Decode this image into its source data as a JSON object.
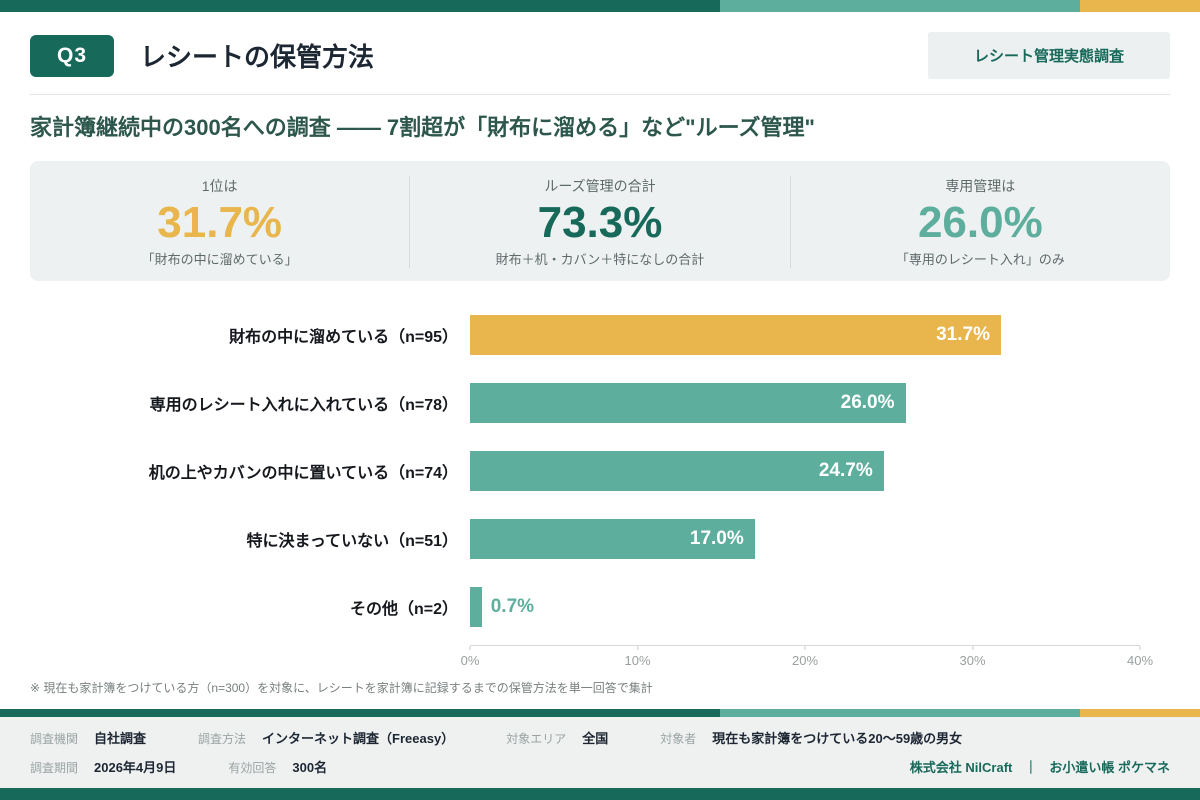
{
  "theme": {
    "dark_teal": "#17695a",
    "teal": "#5eae9e",
    "gold": "#e8b64d",
    "panel_gray": "#eef1f1"
  },
  "header": {
    "q_badge": "Q3",
    "title": "レシートの保管方法",
    "tag": "レシート管理実態調査"
  },
  "subtitle": "家計簿継続中の300名への調査 ―― 7割超が「財布に溜める」など\"ルーズ管理\"",
  "stats": [
    {
      "label": "1位は",
      "value": "31.7%",
      "caption": "「財布の中に溜めている」",
      "color": "#e8b64d"
    },
    {
      "label": "ルーズ管理の合計",
      "value": "73.3%",
      "caption": "財布＋机・カバン＋特になしの合計",
      "color": "#17695a"
    },
    {
      "label": "専用管理は",
      "value": "26.0%",
      "caption": "「専用のレシート入れ」のみ",
      "color": "#5eae9e"
    }
  ],
  "chart_data": {
    "type": "bar",
    "orientation": "horizontal",
    "categories": [
      "財布の中に溜めている（n=95）",
      "専用のレシート入れに入れている（n=78）",
      "机の上やカバンの中に置いている（n=74）",
      "特に決まっていない（n=51）",
      "その他（n=2）"
    ],
    "values": [
      31.7,
      26.0,
      24.7,
      17.0,
      0.7
    ],
    "value_labels": [
      "31.7%",
      "26.0%",
      "24.7%",
      "17.0%",
      "0.7%"
    ],
    "bar_colors": [
      "#e8b64d",
      "#5eae9e",
      "#5eae9e",
      "#5eae9e",
      "#5eae9e"
    ],
    "xlim": [
      0,
      40
    ],
    "x_ticks": [
      "0%",
      "10%",
      "20%",
      "30%",
      "40%"
    ],
    "grid": false,
    "legend": false
  },
  "footnote": "※ 現在も家計簿をつけている方（n=300）を対象に、レシートを家計簿に記録するまでの保管方法を単一回答で集計",
  "footer": {
    "row1": [
      {
        "label": "調査機関",
        "value": "自社調査"
      },
      {
        "label": "調査方法",
        "value": "インターネット調査（Freeasy）"
      },
      {
        "label": "対象エリア",
        "value": "全国"
      },
      {
        "label": "対象者",
        "value": "現在も家計簿をつけている20〜59歳の男女"
      }
    ],
    "row2": [
      {
        "label": "調査期間",
        "value": "2026年4月9日"
      },
      {
        "label": "有効回答",
        "value": "300名"
      }
    ],
    "brand": {
      "company": "株式会社 NilCraft",
      "separator": "｜",
      "product": "お小遣い帳 ポケマネ"
    }
  }
}
